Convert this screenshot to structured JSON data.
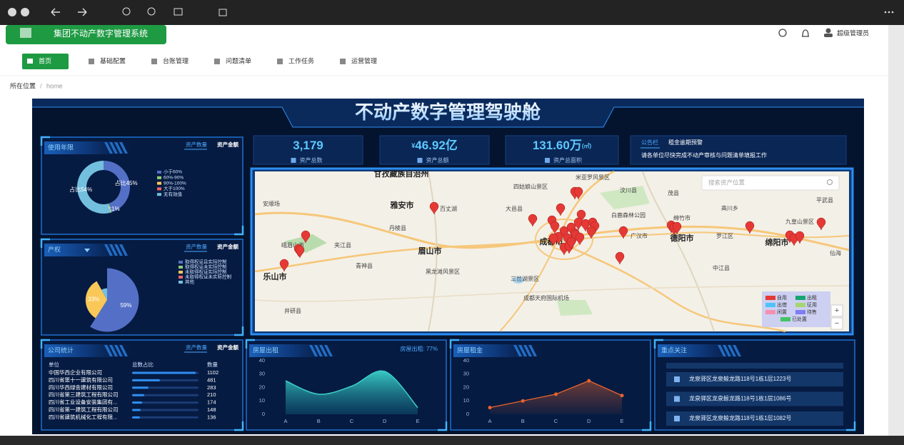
{
  "header": {
    "system_title": "集团不动产数字管理系统",
    "user": "超级管理员"
  },
  "nav": [
    "首页",
    "基础配置",
    "台账管理",
    "问题清单",
    "工作任务",
    "运营管理"
  ],
  "breadcrumb": {
    "label": "所在位置",
    "separator": "/",
    "current": "home"
  },
  "dashboard": {
    "title": "不动产数字管理驾驶舱",
    "stats": [
      {
        "value": "3,179",
        "label": "资产总数"
      },
      {
        "prefix": "¥",
        "value": "46.92亿",
        "label": "资产总额"
      },
      {
        "value": "131.60万",
        "suffix": "(㎡)",
        "label": "资产总面积"
      }
    ],
    "notice": {
      "tabs": [
        "公告栏",
        "租金逾期预警"
      ],
      "text": "请各单位尽快完成不动产审核与问题清单填报工作"
    },
    "map": {
      "search_placeholder": "搜索资产位置",
      "places": [
        "甘孜藏族自治州",
        "米亚罗风景区",
        "四姑娘山景区",
        "汶川县",
        "茂县",
        "平武县",
        "雅安市",
        "百丈湖",
        "大邑县",
        "白鹿森林公园",
        "绵竹市",
        "高川乡",
        "九皇山景区",
        "丹棱县",
        "眉山市",
        "成都市",
        "德阳市",
        "绵阳市",
        "乐山市",
        "夹江县",
        "青神县",
        "井研县",
        "广汉市",
        "罗江区",
        "中江县",
        "三岔湖景区",
        "黑龙滩风景区",
        "成都天府国际机场",
        "仙海",
        "安顺场",
        "峨眉山市"
      ],
      "legend": [
        {
          "name": "自用",
          "color": "#e53935"
        },
        {
          "name": "出租",
          "color": "#17a673"
        },
        {
          "name": "出借",
          "color": "#4fc3f7"
        },
        {
          "name": "征用",
          "color": "#a5d66f"
        },
        {
          "name": "闲置",
          "color": "#f48fb1"
        },
        {
          "name": "待售",
          "color": "#7e7ef2"
        },
        {
          "name": "已处置",
          "color": "#43c463"
        }
      ],
      "zoom": [
        "+",
        "−"
      ]
    },
    "focus": {
      "title": "重点关注",
      "items": [
        "龙泉驿区龙泉鲸龙路118号1栋1层1223号",
        "龙泉驿区龙泉鲸龙路118号1栋1层1086号",
        "龙泉驿区龙泉鲸龙路118号1栋1层1082号"
      ]
    }
  },
  "chart_data": [
    {
      "type": "donut",
      "title": "使用年限",
      "tabs": [
        "资产数量",
        "资产金额"
      ],
      "categories": [
        "小于60%",
        "60%-90%",
        "90%-100%",
        "大于100%",
        "无有效值"
      ],
      "values": [
        45,
        1,
        0,
        0,
        54
      ],
      "value_labels": [
        "占比45%",
        "占比1%",
        null,
        null,
        "占比54%"
      ],
      "colors": [
        "#5470c6",
        "#91cc75",
        "#fac858",
        "#ee6666",
        "#73c0de"
      ]
    },
    {
      "type": "rose",
      "title": "产权",
      "tabs": [
        "资产数量",
        "资产金额"
      ],
      "categories": [
        "取得权证且实际控制",
        "取得权证未实际控制",
        "未取得权证实际控制",
        "未取得权证未实际控制",
        "其他"
      ],
      "values": [
        59,
        0,
        33,
        0,
        8
      ],
      "value_labels": [
        "59%",
        null,
        "33%",
        null,
        null
      ],
      "colors": [
        "#5470c6",
        "#91cc75",
        "#fac858",
        "#ee6666",
        "#73c0de"
      ]
    },
    {
      "type": "hbar",
      "title": "公司统计",
      "tabs": [
        "资产数量",
        "资产金额"
      ],
      "columns": [
        "单位",
        "总数占比",
        "数量"
      ],
      "categories": [
        "中国华西企业有限公司",
        "四川省第十一建筑有限公司",
        "四川华西绿舍建材有限公司",
        "四川省第三建筑工程有限公司",
        "四川省工业设备安装集团有...",
        "四川省第一建筑工程有限公司",
        "四川省建筑机械化工程有限..."
      ],
      "values": [
        1102,
        481,
        283,
        210,
        174,
        148,
        136
      ],
      "xlim": [
        0,
        1150
      ],
      "color": "#2f8ff0"
    },
    {
      "type": "area",
      "title": "房屋出租",
      "subtitle": "房屋出租: 77%",
      "categories": [
        "A",
        "B",
        "C",
        "D",
        "E"
      ],
      "values": [
        25,
        15,
        21,
        32,
        5
      ],
      "ylim": [
        0,
        40
      ],
      "yticks": [
        0,
        10,
        20,
        30,
        40
      ],
      "color": "#3ad1c9"
    },
    {
      "type": "line",
      "title": "房屋租金",
      "categories": [
        "A",
        "B",
        "C",
        "D",
        "E"
      ],
      "values": [
        5,
        10,
        15,
        25,
        14
      ],
      "ylim": [
        0,
        40
      ],
      "yticks": [
        0,
        10,
        20,
        30,
        40
      ],
      "color": "#e8632c"
    }
  ]
}
